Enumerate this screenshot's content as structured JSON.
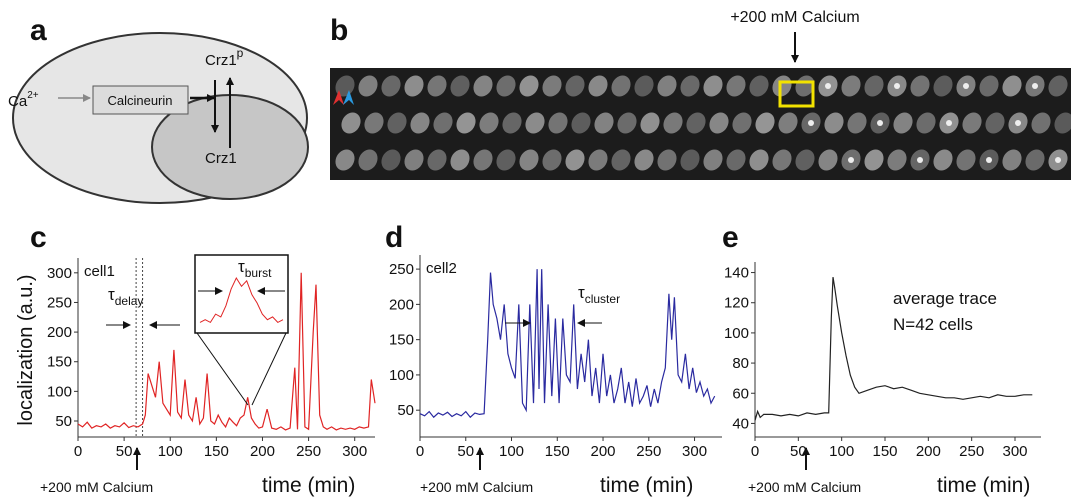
{
  "panel_labels": [
    "a",
    "b",
    "c",
    "d",
    "e"
  ],
  "diagram": {
    "ca": "Ca",
    "ca_charge": "2+",
    "calcineurin": "Calcineurin",
    "crz1p": "Crz1",
    "crz1p_sup": "p",
    "crz1": "Crz1"
  },
  "image": {
    "annotation": "+200 mM Calcium"
  },
  "chart_data": [
    {
      "type": "line",
      "label": "cell1",
      "ylabel": "localization (a.u.)",
      "xlabel": "time (min)",
      "stimulus": "+200 mM Calcium",
      "tau": {
        "symbol": "τ",
        "sub": "delay"
      },
      "inset_tau": {
        "symbol": "τ",
        "sub": "burst"
      },
      "delay_lines": [
        63,
        70
      ],
      "inset": [
        2,
        3,
        2,
        5,
        4,
        8,
        14,
        18,
        15,
        17,
        12,
        9,
        5,
        3,
        4,
        2,
        3
      ],
      "xlim": [
        0,
        322
      ],
      "ylim": [
        23,
        325
      ],
      "xticks": [
        0,
        50,
        100,
        150,
        200,
        250,
        300
      ],
      "yticks": [
        50,
        100,
        150,
        200,
        250,
        300
      ],
      "series": [
        {
          "color": "#e02424",
          "x": [
            0,
            5,
            10,
            15,
            20,
            25,
            30,
            35,
            40,
            45,
            50,
            55,
            60,
            65,
            70,
            73,
            76,
            80,
            84,
            88,
            92,
            96,
            100,
            104,
            108,
            112,
            116,
            120,
            124,
            128,
            132,
            136,
            140,
            144,
            148,
            152,
            156,
            160,
            164,
            168,
            172,
            176,
            180,
            184,
            188,
            192,
            196,
            200,
            205,
            210,
            215,
            220,
            225,
            230,
            235,
            238,
            242,
            246,
            250,
            255,
            258,
            262,
            266,
            270,
            275,
            280,
            285,
            290,
            295,
            300,
            305,
            310,
            315,
            318,
            322
          ],
          "values": [
            45,
            40,
            48,
            38,
            42,
            40,
            45,
            38,
            42,
            40,
            47,
            39,
            42,
            40,
            45,
            60,
            130,
            110,
            90,
            150,
            80,
            70,
            60,
            170,
            65,
            55,
            120,
            60,
            50,
            90,
            45,
            55,
            130,
            50,
            45,
            60,
            48,
            40,
            55,
            48,
            42,
            55,
            60,
            90,
            55,
            45,
            38,
            40,
            70,
            38,
            36,
            40,
            35,
            38,
            140,
            36,
            300,
            40,
            36,
            200,
            280,
            60,
            40,
            36,
            40,
            35,
            38,
            36,
            38,
            36,
            40,
            38,
            40,
            120,
            80
          ]
        }
      ]
    },
    {
      "type": "line",
      "label": "cell2",
      "xlabel": "time (min)",
      "stimulus": "+200 mM Calcium",
      "tau": {
        "symbol": "τ",
        "sub": "cluster"
      },
      "xlim": [
        0,
        330
      ],
      "ylim": [
        12,
        270
      ],
      "xticks": [
        0,
        50,
        100,
        150,
        200,
        250,
        300
      ],
      "yticks": [
        50,
        100,
        150,
        200,
        250
      ],
      "series": [
        {
          "color": "#2a2aa0",
          "x": [
            0,
            5,
            10,
            15,
            20,
            25,
            30,
            35,
            40,
            45,
            50,
            55,
            60,
            65,
            70,
            74,
            77,
            80,
            84,
            88,
            92,
            96,
            100,
            104,
            108,
            112,
            116,
            120,
            124,
            128,
            130,
            133,
            136,
            140,
            144,
            148,
            152,
            156,
            160,
            164,
            168,
            172,
            176,
            180,
            184,
            188,
            192,
            196,
            200,
            204,
            208,
            212,
            216,
            220,
            224,
            228,
            232,
            236,
            240,
            244,
            248,
            252,
            256,
            260,
            264,
            268,
            272,
            275,
            278,
            282,
            286,
            290,
            294,
            298,
            302,
            306,
            310,
            314,
            318,
            322
          ],
          "values": [
            45,
            42,
            48,
            40,
            46,
            43,
            47,
            41,
            45,
            42,
            48,
            40,
            46,
            44,
            45,
            150,
            245,
            200,
            180,
            150,
            200,
            130,
            110,
            95,
            200,
            60,
            50,
            200,
            60,
            250,
            80,
            250,
            60,
            200,
            70,
            180,
            60,
            180,
            100,
            90,
            200,
            80,
            130,
            90,
            150,
            70,
            110,
            60,
            130,
            70,
            100,
            60,
            80,
            110,
            60,
            90,
            55,
            95,
            60,
            70,
            85,
            55,
            80,
            60,
            90,
            110,
            215,
            150,
            210,
            100,
            90,
            130,
            80,
            110,
            75,
            90,
            70,
            80,
            60,
            70
          ]
        }
      ]
    },
    {
      "type": "line",
      "annotations": [
        "average trace",
        "N=42 cells"
      ],
      "xlabel": "time (min)",
      "stimulus": "+200 mM Calcium",
      "xlim": [
        0,
        330
      ],
      "ylim": [
        31,
        147
      ],
      "xticks": [
        0,
        50,
        100,
        150,
        200,
        250,
        300
      ],
      "yticks": [
        40,
        60,
        80,
        100,
        120,
        140
      ],
      "series": [
        {
          "color": "#222222",
          "x": [
            0,
            3,
            6,
            10,
            20,
            30,
            40,
            50,
            60,
            70,
            80,
            85,
            88,
            90,
            92,
            95,
            100,
            105,
            110,
            115,
            120,
            130,
            140,
            150,
            160,
            170,
            180,
            190,
            200,
            210,
            220,
            230,
            240,
            250,
            260,
            270,
            280,
            290,
            300,
            310,
            320
          ],
          "values": [
            42,
            48,
            44,
            46,
            46,
            45,
            46,
            45,
            47,
            46,
            47,
            47,
            110,
            137,
            130,
            118,
            100,
            85,
            72,
            64,
            60,
            62,
            64,
            65,
            63,
            64,
            62,
            60,
            59,
            58,
            57,
            57,
            56,
            57,
            58,
            57,
            59,
            58,
            58,
            59,
            59
          ]
        }
      ]
    }
  ]
}
